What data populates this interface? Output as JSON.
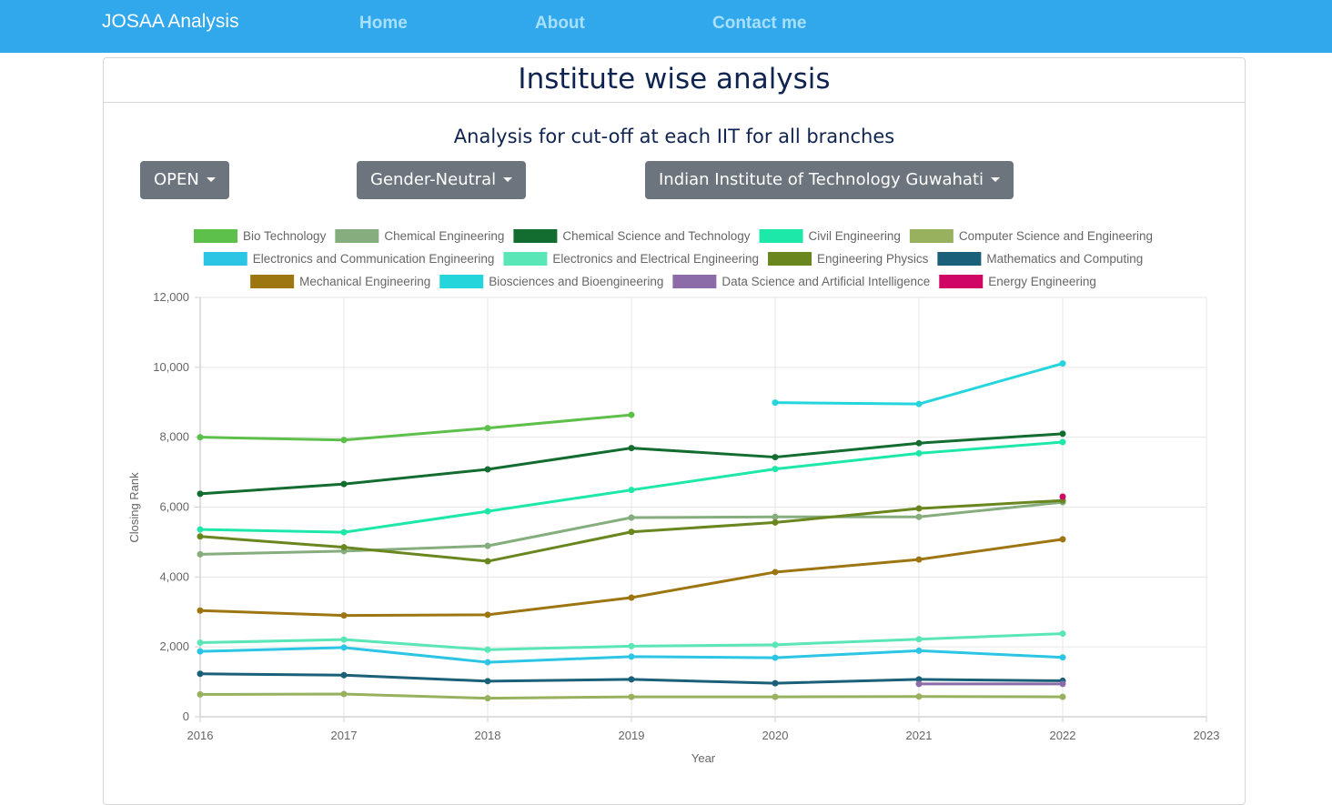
{
  "navbar": {
    "brand": "JOSAA Analysis",
    "links": [
      "Home",
      "About",
      "Contact me"
    ]
  },
  "page": {
    "title": "Institute wise analysis",
    "subtitle": "Analysis for cut-off at each IIT for all branches"
  },
  "filters": {
    "category": "OPEN",
    "gender": "Gender-Neutral",
    "institute": "Indian Institute of Technology Guwahati"
  },
  "colors": {
    "navbar": "#31a7ec",
    "nav_link": "#a8e0ff",
    "title": "#0f2451",
    "button": "#6c757d"
  },
  "chart_data": {
    "type": "line",
    "xlabel": "Year",
    "ylabel": "Closing Rank",
    "x": [
      2016,
      2017,
      2018,
      2019,
      2020,
      2021,
      2022
    ],
    "xlim": [
      2016,
      2023
    ],
    "ylim": [
      0,
      12000
    ],
    "yticks": [
      "0",
      "2,000",
      "4,000",
      "6,000",
      "8,000",
      "10,000",
      "12,000"
    ],
    "xticks": [
      "2016",
      "2017",
      "2018",
      "2019",
      "2020",
      "2021",
      "2022",
      "2023"
    ],
    "grid": true,
    "legend_position": "top",
    "series": [
      {
        "name": "Bio Technology",
        "color": "#5dc04a",
        "values": [
          8000,
          7920,
          8260,
          8640,
          null,
          null,
          null
        ]
      },
      {
        "name": "Chemical Engineering",
        "color": "#86ad7d",
        "values": [
          4650,
          4740,
          4890,
          5700,
          5720,
          5720,
          6140
        ]
      },
      {
        "name": "Chemical Science and Technology",
        "color": "#136c30",
        "values": [
          6380,
          6660,
          7080,
          7690,
          7430,
          7830,
          8100
        ]
      },
      {
        "name": "Civil Engineering",
        "color": "#1ee8a9",
        "values": [
          5360,
          5280,
          5880,
          6490,
          7090,
          7540,
          7860
        ]
      },
      {
        "name": "Computer Science and Engineering",
        "color": "#97b15e",
        "values": [
          640,
          650,
          530,
          570,
          570,
          580,
          570
        ]
      },
      {
        "name": "Electronics and Communication Engineering",
        "color": "#2cc6e4",
        "values": [
          1870,
          1980,
          1560,
          1720,
          1690,
          1890,
          1700
        ]
      },
      {
        "name": "Electronics and Electrical Engineering",
        "color": "#5ae6b7",
        "values": [
          2120,
          2210,
          1920,
          2020,
          2060,
          2220,
          2380
        ]
      },
      {
        "name": "Engineering Physics",
        "color": "#6a861f",
        "values": [
          5160,
          4850,
          4450,
          5290,
          5560,
          5960,
          6190
        ]
      },
      {
        "name": "Mathematics and Computing",
        "color": "#1b6079",
        "values": [
          1230,
          1190,
          1020,
          1070,
          960,
          1070,
          1030
        ]
      },
      {
        "name": "Mechanical Engineering",
        "color": "#9d7612",
        "values": [
          3040,
          2900,
          2920,
          3410,
          4140,
          4500,
          5080
        ]
      },
      {
        "name": "Biosciences and Bioengineering",
        "color": "#24d6dc",
        "values": [
          null,
          null,
          null,
          null,
          8990,
          8950,
          10110
        ]
      },
      {
        "name": "Data Science and Artificial Intelligence",
        "color": "#8c6ca8",
        "values": [
          null,
          null,
          null,
          null,
          null,
          940,
          940
        ]
      },
      {
        "name": "Energy Engineering",
        "color": "#cf0663",
        "values": [
          null,
          null,
          null,
          null,
          null,
          null,
          6300
        ]
      }
    ]
  }
}
